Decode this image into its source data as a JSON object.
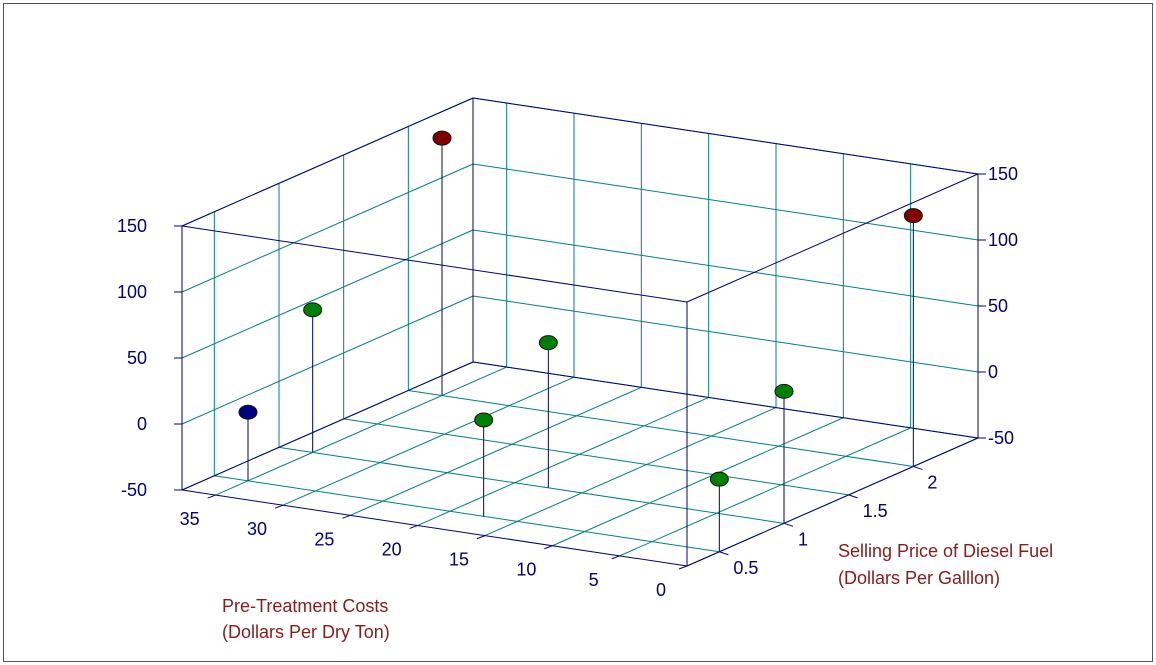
{
  "chart_data": {
    "type": "scatter",
    "subtype": "3d-scatter-with-drop-lines",
    "title": "",
    "xlabel": [
      "Pre-Treatment Costs",
      "(Dollars Per Dry Ton)"
    ],
    "ylabel": [
      "Selling Price of Diesel Fuel",
      "(Dollars Per Galllon)"
    ],
    "zlabel": "",
    "x_ticks": [
      "35",
      "30",
      "25",
      "20",
      "15",
      "10",
      "5",
      "0"
    ],
    "y_ticks": [
      "0.5",
      "1",
      "1.5",
      "2"
    ],
    "z_ticks": [
      "150",
      "100",
      "50",
      "0",
      "-50"
    ],
    "xlim": [
      0,
      37.5
    ],
    "ylim": [
      0.25,
      2.5
    ],
    "zlim": [
      -50,
      150
    ],
    "grid": true,
    "legend": "none",
    "colors": {
      "axis": "#000080",
      "grid": "#008080",
      "label": "#8b1a1a",
      "point_red": "#800000",
      "point_green": "#008000",
      "point_blue": "#000080"
    },
    "points": [
      {
        "x": 35,
        "y": 0.5,
        "z": 2,
        "color": "blue"
      },
      {
        "x": 35,
        "y": 1.0,
        "z": 58,
        "color": "green"
      },
      {
        "x": 35,
        "y": 2.0,
        "z": 145,
        "color": "red"
      },
      {
        "x": 17.5,
        "y": 0.5,
        "z": 23,
        "color": "green"
      },
      {
        "x": 17.5,
        "y": 1.0,
        "z": 60,
        "color": "green"
      },
      {
        "x": 0,
        "y": 0.5,
        "z": 5,
        "color": "green"
      },
      {
        "x": 0,
        "y": 1.0,
        "z": 50,
        "color": "green"
      },
      {
        "x": 0,
        "y": 2.0,
        "z": 140,
        "color": "red"
      }
    ]
  }
}
